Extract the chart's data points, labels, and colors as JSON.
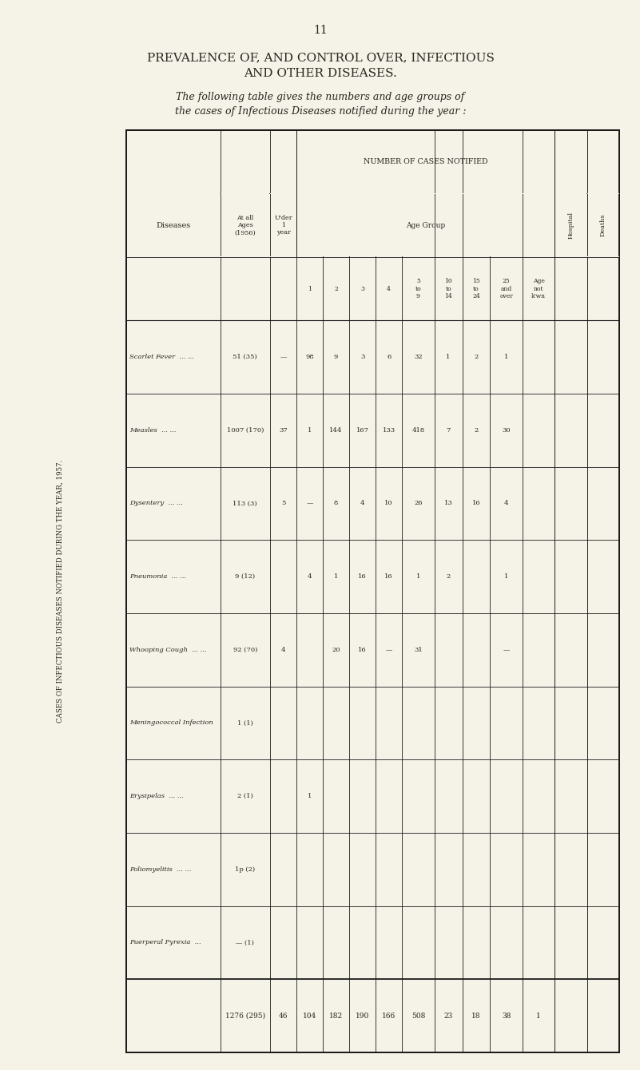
{
  "page_number": "11",
  "title_line1": "PREVALENCE OF, AND CONTROL OVER, INFECTIOUS",
  "title_line2": "AND OTHER DISEASES.",
  "intro_line1": "The following table gives the numbers and age groups of",
  "intro_line2": "the cases of Infectious Diseases notified during the year :",
  "side_label": "CASES OF INFECTIOUS DISEASES NOTIFIED DURING THE YEAR, 1957.",
  "bg_color": "#f5f2e8",
  "text_color": "#2a2520",
  "line_color": "#1a1a1a",
  "diseases": [
    "Scarlet Fever",
    "Measles",
    "Dysentery",
    "Pneumonia",
    "Whooping Cough",
    "Meningococcal Infection",
    "Erysipelas",
    "Poliomyelitis",
    "Puerperal Pyrexia"
  ],
  "disease_dots": [
    "  ... ...",
    "  ... ...",
    "  ... ...",
    "  ... ...",
    "  ... ...",
    "",
    "  ... ...",
    "  ... ...",
    "  ..."
  ],
  "table_data": [
    [
      "51 (35)",
      "—",
      "98",
      "9",
      "3",
      "6",
      "32",
      "1",
      "2",
      "1",
      "",
      "",
      ""
    ],
    [
      "1007 (170)",
      "37",
      "1",
      "144",
      "167",
      "133",
      "418",
      "7",
      "2",
      "30",
      "",
      "",
      ""
    ],
    [
      "113 (3)",
      "5",
      "—",
      "8",
      "4",
      "10",
      "26",
      "13",
      "16",
      "4",
      "",
      "",
      ""
    ],
    [
      "9 (12)",
      "",
      "4",
      "1",
      "16",
      "16",
      "1",
      "2",
      "",
      "1",
      "",
      "",
      ""
    ],
    [
      "92 (70)",
      "4",
      "",
      "20",
      "16",
      "—",
      "31",
      "",
      "",
      "—",
      "",
      "",
      ""
    ],
    [
      "1 (1)",
      "",
      "",
      "",
      "",
      "",
      "",
      "",
      "",
      "",
      "",
      "",
      ""
    ],
    [
      "2 (1)",
      "",
      "1",
      "",
      "",
      "",
      "",
      "",
      "",
      "",
      "",
      "",
      ""
    ],
    [
      "1p (2)",
      "",
      "",
      "",
      "",
      "",
      "",
      "",
      "",
      "",
      "",
      "",
      ""
    ],
    [
      "— (1)",
      "",
      "",
      "",
      "",
      "",
      "",
      "",
      "",
      "",
      "",
      "",
      ""
    ]
  ],
  "totals": [
    "1276 (295)",
    "46",
    "104",
    "182",
    "190",
    "166",
    "508",
    "23",
    "18",
    "38",
    "1",
    "",
    ""
  ],
  "col_props": [
    3.2,
    1.7,
    0.9,
    0.9,
    0.9,
    0.9,
    0.9,
    1.1,
    0.95,
    0.95,
    1.1,
    1.1,
    1.1,
    1.1
  ],
  "age_headers": [
    "1",
    "2",
    "3",
    "4",
    "5\nto\n9",
    "10\nto\n14",
    "15\nto\n24",
    "25\nand\nover",
    "Age\nnot\nk'wn"
  ]
}
